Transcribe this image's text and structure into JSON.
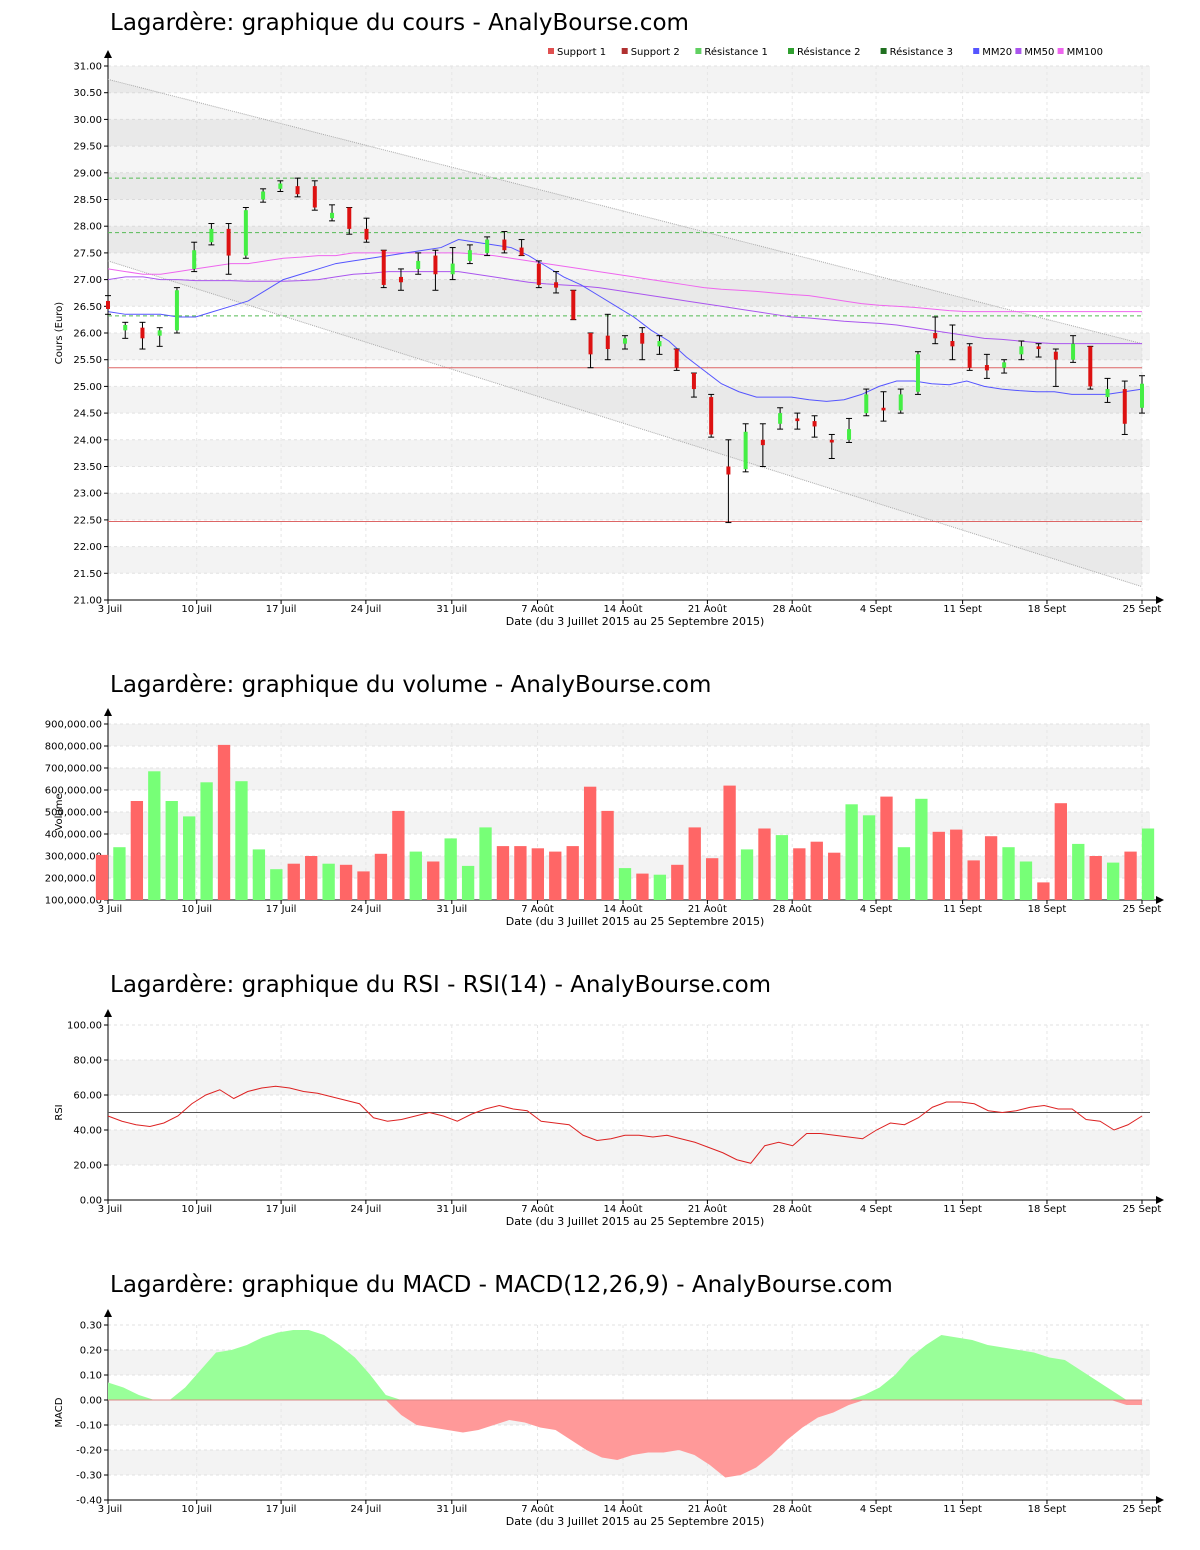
{
  "chart_data": [
    {
      "id": "price",
      "type": "candlestick",
      "title": "Lagardère: graphique du cours - AnalyBourse.com",
      "xlabel": "Date (du 3 Juillet 2015 au 25 Septembre 2015)",
      "ylabel": "Cours (Euro)",
      "ylim": [
        21,
        31
      ],
      "yticks": [
        "21.00",
        "21.50",
        "22.00",
        "22.50",
        "23.00",
        "23.50",
        "24.00",
        "24.50",
        "25.00",
        "25.50",
        "26.00",
        "26.50",
        "27.00",
        "27.50",
        "28.00",
        "28.50",
        "29.00",
        "29.50",
        "30.00",
        "30.50",
        "31.00"
      ],
      "grid": true,
      "legend_position": "top-right",
      "legend": [
        {
          "name": "Support 1",
          "color": "#e05050"
        },
        {
          "name": "Support 2",
          "color": "#b03030"
        },
        {
          "name": "Résistance 1",
          "color": "#60d060"
        },
        {
          "name": "Résistance 2",
          "color": "#30a030"
        },
        {
          "name": "Résistance 3",
          "color": "#207020"
        },
        {
          "name": "MM20",
          "color": "#5555ff"
        },
        {
          "name": "MM50",
          "color": "#aa55ee"
        },
        {
          "name": "MM100",
          "color": "#ee66ee"
        }
      ],
      "support_levels": [
        25.35,
        22.47
      ],
      "resistance_levels": [
        28.9,
        27.88,
        26.32
      ],
      "trend_channel": {
        "upper": [
          30.75,
          25.8
        ],
        "lower": [
          27.35,
          21.25
        ]
      },
      "ma20": [
        26.4,
        26.35,
        26.35,
        26.35,
        26.3,
        26.3,
        26.4,
        26.5,
        26.6,
        26.8,
        27.0,
        27.1,
        27.2,
        27.3,
        27.35,
        27.4,
        27.45,
        27.5,
        27.55,
        27.6,
        27.75,
        27.7,
        27.65,
        27.6,
        27.45,
        27.25,
        27.05,
        26.9,
        26.7,
        26.5,
        26.3,
        26.05,
        25.85,
        25.55,
        25.3,
        25.05,
        24.9,
        24.8,
        24.8,
        24.8,
        24.75,
        24.72,
        24.75,
        24.85,
        25.0,
        25.1,
        25.1,
        25.05,
        25.03,
        25.1,
        25.0,
        24.95,
        24.92,
        24.9,
        24.9,
        24.85,
        24.85,
        24.85,
        24.9,
        24.95
      ],
      "ma50": [
        27.0,
        27.05,
        27.05,
        27.0,
        27.0,
        26.98,
        26.98,
        26.98,
        26.97,
        26.97,
        26.97,
        26.98,
        27.0,
        27.05,
        27.1,
        27.12,
        27.15,
        27.15,
        27.15,
        27.15,
        27.15,
        27.1,
        27.05,
        27.0,
        26.95,
        26.92,
        26.9,
        26.88,
        26.85,
        26.8,
        26.75,
        26.7,
        26.65,
        26.6,
        26.55,
        26.5,
        26.45,
        26.4,
        26.35,
        26.3,
        26.28,
        26.25,
        26.22,
        26.2,
        26.18,
        26.15,
        26.1,
        26.05,
        26.0,
        25.95,
        25.9,
        25.88,
        25.85,
        25.82,
        25.8,
        25.8,
        25.8,
        25.8,
        25.8,
        25.8
      ],
      "ma100": [
        27.2,
        27.15,
        27.1,
        27.1,
        27.15,
        27.2,
        27.25,
        27.3,
        27.3,
        27.35,
        27.4,
        27.42,
        27.45,
        27.45,
        27.5,
        27.5,
        27.5,
        27.5,
        27.5,
        27.5,
        27.5,
        27.48,
        27.45,
        27.4,
        27.35,
        27.3,
        27.25,
        27.2,
        27.15,
        27.1,
        27.05,
        27.0,
        26.95,
        26.9,
        26.85,
        26.82,
        26.8,
        26.78,
        26.75,
        26.72,
        26.7,
        26.65,
        26.6,
        26.55,
        26.52,
        26.5,
        26.48,
        26.45,
        26.42,
        26.4,
        26.4,
        26.4,
        26.4,
        26.4,
        26.4,
        26.4,
        26.4,
        26.4,
        26.4,
        26.4
      ],
      "ohlc": [
        {
          "o": 26.6,
          "h": 26.7,
          "l": 26.35,
          "c": 26.45
        },
        {
          "o": 26.05,
          "h": 26.2,
          "l": 25.9,
          "c": 26.15
        },
        {
          "o": 26.1,
          "h": 26.2,
          "l": 25.7,
          "c": 25.9
        },
        {
          "o": 25.95,
          "h": 26.1,
          "l": 25.75,
          "c": 26.05
        },
        {
          "o": 26.05,
          "h": 26.85,
          "l": 26.0,
          "c": 26.8
        },
        {
          "o": 27.2,
          "h": 27.7,
          "l": 27.15,
          "c": 27.55
        },
        {
          "o": 27.7,
          "h": 28.05,
          "l": 27.65,
          "c": 27.95
        },
        {
          "o": 27.95,
          "h": 28.05,
          "l": 27.1,
          "c": 27.45
        },
        {
          "o": 27.45,
          "h": 28.35,
          "l": 27.4,
          "c": 28.3
        },
        {
          "o": 28.5,
          "h": 28.7,
          "l": 28.45,
          "c": 28.65
        },
        {
          "o": 28.7,
          "h": 28.85,
          "l": 28.65,
          "c": 28.8
        },
        {
          "o": 28.75,
          "h": 28.9,
          "l": 28.55,
          "c": 28.6
        },
        {
          "o": 28.75,
          "h": 28.85,
          "l": 28.3,
          "c": 28.35
        },
        {
          "o": 28.15,
          "h": 28.4,
          "l": 28.1,
          "c": 28.25
        },
        {
          "o": 28.35,
          "h": 28.35,
          "l": 27.85,
          "c": 27.95
        },
        {
          "o": 27.95,
          "h": 28.15,
          "l": 27.7,
          "c": 27.75
        },
        {
          "o": 27.55,
          "h": 27.55,
          "l": 26.85,
          "c": 26.9
        },
        {
          "o": 27.05,
          "h": 27.2,
          "l": 26.8,
          "c": 26.95
        },
        {
          "o": 27.2,
          "h": 27.5,
          "l": 27.1,
          "c": 27.35
        },
        {
          "o": 27.45,
          "h": 27.55,
          "l": 26.8,
          "c": 27.1
        },
        {
          "o": 27.1,
          "h": 27.6,
          "l": 27.0,
          "c": 27.3
        },
        {
          "o": 27.35,
          "h": 27.65,
          "l": 27.3,
          "c": 27.55
        },
        {
          "o": 27.5,
          "h": 27.8,
          "l": 27.45,
          "c": 27.75
        },
        {
          "o": 27.75,
          "h": 27.9,
          "l": 27.5,
          "c": 27.55
        },
        {
          "o": 27.6,
          "h": 27.75,
          "l": 27.45,
          "c": 27.45
        },
        {
          "o": 27.3,
          "h": 27.35,
          "l": 26.85,
          "c": 26.9
        },
        {
          "o": 26.95,
          "h": 27.15,
          "l": 26.75,
          "c": 26.85
        },
        {
          "o": 26.8,
          "h": 26.8,
          "l": 26.25,
          "c": 26.25
        },
        {
          "o": 26.0,
          "h": 26.0,
          "l": 25.35,
          "c": 25.6
        },
        {
          "o": 25.95,
          "h": 26.35,
          "l": 25.5,
          "c": 25.7
        },
        {
          "o": 25.8,
          "h": 25.95,
          "l": 25.7,
          "c": 25.9
        },
        {
          "o": 26.0,
          "h": 26.1,
          "l": 25.5,
          "c": 25.8
        },
        {
          "o": 25.75,
          "h": 25.95,
          "l": 25.6,
          "c": 25.85
        },
        {
          "o": 25.7,
          "h": 25.7,
          "l": 25.3,
          "c": 25.35
        },
        {
          "o": 25.25,
          "h": 25.25,
          "l": 24.8,
          "c": 24.95
        },
        {
          "o": 24.8,
          "h": 24.85,
          "l": 24.05,
          "c": 24.1
        },
        {
          "o": 23.5,
          "h": 24.0,
          "l": 22.45,
          "c": 23.35
        },
        {
          "o": 23.45,
          "h": 24.3,
          "l": 23.4,
          "c": 24.15
        },
        {
          "o": 24.0,
          "h": 24.3,
          "l": 23.5,
          "c": 23.9
        },
        {
          "o": 24.3,
          "h": 24.6,
          "l": 24.2,
          "c": 24.5
        },
        {
          "o": 24.4,
          "h": 24.5,
          "l": 24.2,
          "c": 24.35
        },
        {
          "o": 24.35,
          "h": 24.45,
          "l": 24.05,
          "c": 24.25
        },
        {
          "o": 24.0,
          "h": 24.1,
          "l": 23.65,
          "c": 23.95
        },
        {
          "o": 24.0,
          "h": 24.4,
          "l": 23.95,
          "c": 24.2
        },
        {
          "o": 24.5,
          "h": 24.95,
          "l": 24.45,
          "c": 24.85
        },
        {
          "o": 24.6,
          "h": 24.9,
          "l": 24.35,
          "c": 24.55
        },
        {
          "o": 24.55,
          "h": 24.95,
          "l": 24.5,
          "c": 24.85
        },
        {
          "o": 24.9,
          "h": 25.65,
          "l": 24.85,
          "c": 25.6
        },
        {
          "o": 26.0,
          "h": 26.3,
          "l": 25.8,
          "c": 25.9
        },
        {
          "o": 25.85,
          "h": 26.15,
          "l": 25.5,
          "c": 25.75
        },
        {
          "o": 25.75,
          "h": 25.8,
          "l": 25.3,
          "c": 25.35
        },
        {
          "o": 25.4,
          "h": 25.6,
          "l": 25.15,
          "c": 25.3
        },
        {
          "o": 25.35,
          "h": 25.5,
          "l": 25.25,
          "c": 25.45
        },
        {
          "o": 25.6,
          "h": 25.85,
          "l": 25.5,
          "c": 25.75
        },
        {
          "o": 25.75,
          "h": 25.8,
          "l": 25.55,
          "c": 25.7
        },
        {
          "o": 25.65,
          "h": 25.7,
          "l": 25.0,
          "c": 25.5
        },
        {
          "o": 25.5,
          "h": 25.95,
          "l": 25.45,
          "c": 25.8
        },
        {
          "o": 25.75,
          "h": 25.75,
          "l": 24.95,
          "c": 25.0
        },
        {
          "o": 24.8,
          "h": 25.15,
          "l": 24.7,
          "c": 24.95
        },
        {
          "o": 24.95,
          "h": 25.1,
          "l": 24.1,
          "c": 24.3
        },
        {
          "o": 24.6,
          "h": 25.2,
          "l": 24.5,
          "c": 25.05
        }
      ]
    },
    {
      "id": "volume",
      "type": "bar",
      "title": "Lagardère: graphique du volume - AnalyBourse.com",
      "xlabel": "Date (du 3 Juillet 2015 au 25 Septembre 2015)",
      "ylabel": "Volume",
      "ylim": [
        100000,
        900000
      ],
      "yticks": [
        "100,000.00",
        "200,000.00",
        "300,000.00",
        "400,000.00",
        "500,000.00",
        "600,000.00",
        "700,000.00",
        "800,000.00",
        "900,000.00"
      ],
      "grid": true,
      "values": [
        305000,
        340000,
        550000,
        685000,
        550000,
        480000,
        635000,
        805000,
        640000,
        330000,
        240000,
        265000,
        300000,
        265000,
        260000,
        230000,
        310000,
        505000,
        320000,
        275000,
        380000,
        255000,
        430000,
        345000,
        345000,
        335000,
        320000,
        345000,
        615000,
        505000,
        245000,
        220000,
        215000,
        260000,
        430000,
        290000,
        620000,
        330000,
        425000,
        395000,
        335000,
        365000,
        315000,
        535000,
        485000,
        570000,
        340000,
        560000,
        410000,
        420000,
        280000,
        390000,
        340000,
        275000,
        180000,
        540000,
        355000,
        300000,
        270000,
        320000,
        425000
      ],
      "up": [
        false,
        true,
        false,
        true,
        true,
        true,
        true,
        false,
        true,
        true,
        true,
        false,
        false,
        true,
        false,
        false,
        false,
        false,
        true,
        false,
        true,
        true,
        true,
        false,
        false,
        false,
        false,
        false,
        false,
        false,
        true,
        false,
        true,
        false,
        false,
        false,
        false,
        true,
        false,
        true,
        false,
        false,
        false,
        true,
        true,
        false,
        true,
        true,
        false,
        false,
        false,
        false,
        true,
        true,
        false,
        false,
        true,
        false,
        true,
        false,
        true
      ]
    },
    {
      "id": "rsi",
      "type": "line",
      "title": "Lagardère: graphique du RSI - RSI(14) - AnalyBourse.com",
      "xlabel": "Date (du 3 Juillet 2015 au 25 Septembre 2015)",
      "ylabel": "RSI",
      "ylim": [
        0,
        100
      ],
      "yticks": [
        "0.00",
        "20.00",
        "40.00",
        "60.00",
        "80.00",
        "100.00"
      ],
      "grid": true,
      "reference_line": 50,
      "values": [
        48,
        45,
        43,
        42,
        44,
        48,
        55,
        60,
        63,
        58,
        62,
        64,
        65,
        64,
        62,
        61,
        59,
        57,
        55,
        47,
        45,
        46,
        48,
        50,
        48,
        45,
        49,
        52,
        54,
        52,
        51,
        45,
        44,
        43,
        37,
        34,
        35,
        37,
        37,
        36,
        37,
        35,
        33,
        30,
        27,
        23,
        21,
        31,
        33,
        31,
        38,
        38,
        37,
        36,
        35,
        40,
        44,
        43,
        47,
        53,
        56,
        56,
        55,
        51,
        50,
        51,
        53,
        54,
        52,
        52,
        46,
        45,
        40,
        43,
        48
      ]
    },
    {
      "id": "macd",
      "type": "area",
      "title": "Lagardère: graphique du MACD - MACD(12,26,9) - AnalyBourse.com",
      "xlabel": "Date (du 3 Juillet 2015 au 25 Septembre 2015)",
      "ylabel": "MACD",
      "ylim": [
        -0.4,
        0.3
      ],
      "yticks": [
        "-0.40",
        "-0.30",
        "-0.20",
        "-0.10",
        "0.00",
        "0.10",
        "0.20",
        "0.30"
      ],
      "grid": true,
      "values": [
        0.07,
        0.05,
        0.02,
        0.0,
        0.0,
        0.05,
        0.12,
        0.19,
        0.2,
        0.22,
        0.25,
        0.27,
        0.28,
        0.28,
        0.26,
        0.22,
        0.17,
        0.1,
        0.02,
        -0.06,
        -0.1,
        -0.11,
        -0.12,
        -0.13,
        -0.12,
        -0.1,
        -0.08,
        -0.09,
        -0.11,
        -0.12,
        -0.16,
        -0.2,
        -0.23,
        -0.24,
        -0.22,
        -0.21,
        -0.21,
        -0.2,
        -0.22,
        -0.26,
        -0.31,
        -0.3,
        -0.27,
        -0.22,
        -0.16,
        -0.11,
        -0.07,
        -0.05,
        -0.02,
        0.02,
        0.05,
        0.1,
        0.17,
        0.22,
        0.26,
        0.25,
        0.24,
        0.22,
        0.21,
        0.2,
        0.19,
        0.17,
        0.16,
        0.12,
        0.08,
        0.04,
        -0.02,
        -0.02
      ]
    }
  ],
  "x_axis": {
    "labels": [
      "3 Juil",
      "10 Juil",
      "17 Juil",
      "24 Juil",
      "31 Juil",
      "7 Août",
      "14 Août",
      "21 Août",
      "28 Août",
      "4 Sept",
      "11 Sept",
      "18 Sept",
      "25 Sept"
    ],
    "label_fractions": [
      0,
      0.0858,
      0.1674,
      0.2494,
      0.3325,
      0.4154,
      0.4981,
      0.5797,
      0.6617,
      0.7428,
      0.8265,
      0.9081,
      1.0
    ]
  },
  "colors": {
    "up": "#44ee44",
    "down": "#dd1111",
    "volume_up": "#77ff77",
    "volume_down": "#ff6666",
    "macd_pos": "#99ff99",
    "macd_neg": "#ff9999",
    "rsi_line": "#dd2222",
    "ma20": "#5555ff",
    "ma50": "#aa55ee",
    "ma100": "#ee66ee",
    "support": "#dd6666",
    "resistance": "#55bb55"
  }
}
